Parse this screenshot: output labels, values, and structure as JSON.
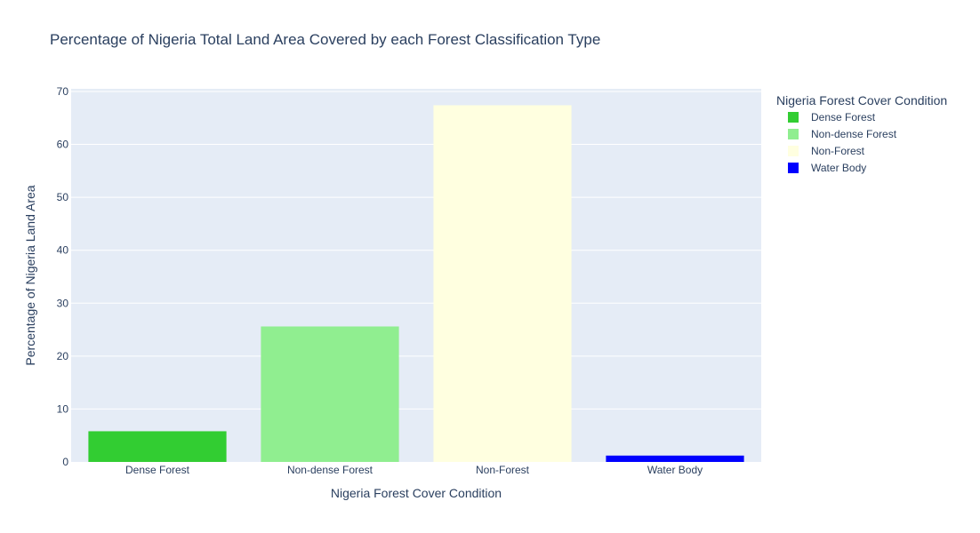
{
  "chart_data": {
    "type": "bar",
    "title": "Percentage of Nigeria Total Land Area Covered by each Forest Classification Type",
    "xlabel": "Nigeria Forest Cover Condition",
    "ylabel": "Percentage of Nigeria Land Area",
    "ylim": [
      0,
      70.5
    ],
    "yticks": [
      0,
      10,
      20,
      30,
      40,
      50,
      60,
      70
    ],
    "grid": true,
    "legend_title": "Nigeria Forest Cover Condition",
    "legend_position": "top-right",
    "categories": [
      "Dense Forest",
      "Non-dense Forest",
      "Non-Forest",
      "Water Body"
    ],
    "series": [
      {
        "name": "Dense Forest",
        "category": "Dense Forest",
        "value": 5.8,
        "color": "#32cd32"
      },
      {
        "name": "Non-dense Forest",
        "category": "Non-dense Forest",
        "value": 25.6,
        "color": "#90ee90"
      },
      {
        "name": "Non-Forest",
        "category": "Non-Forest",
        "value": 67.4,
        "color": "#ffffe0"
      },
      {
        "name": "Water Body",
        "category": "Water Body",
        "value": 1.2,
        "color": "#0000ff"
      }
    ]
  }
}
